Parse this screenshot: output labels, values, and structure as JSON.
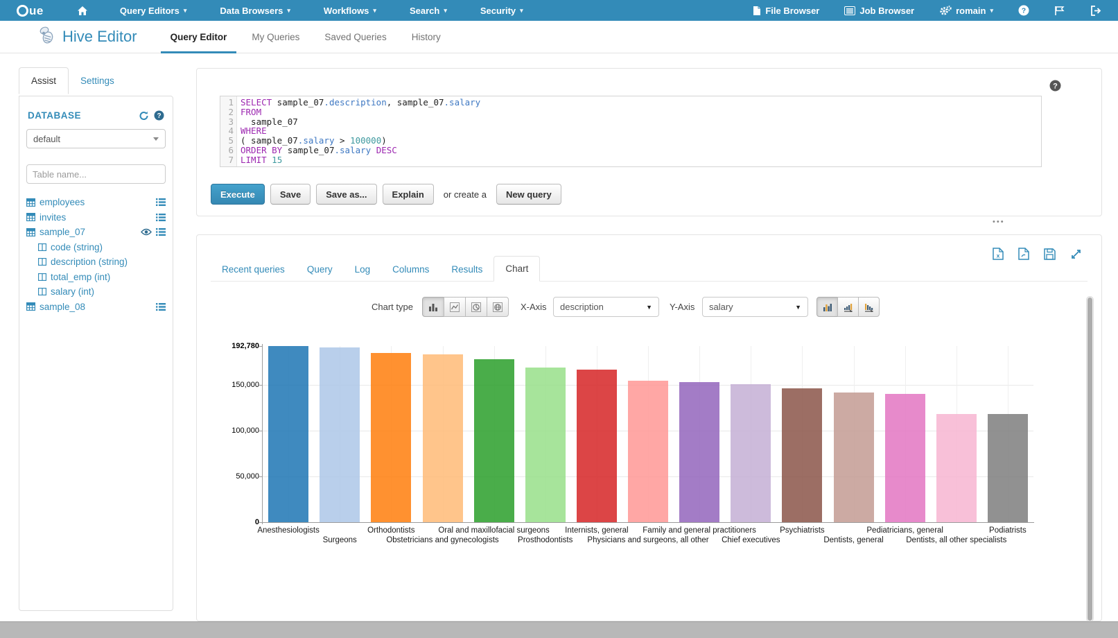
{
  "topnav": {
    "logo_text": "ue",
    "menus": [
      "Query Editors",
      "Data Browsers",
      "Workflows",
      "Search",
      "Security"
    ],
    "file_browser": "File Browser",
    "job_browser": "Job Browser",
    "user": "romain"
  },
  "subheader": {
    "app_title": "Hive Editor",
    "tabs": [
      "Query Editor",
      "My Queries",
      "Saved Queries",
      "History"
    ],
    "active_tab": "Query Editor"
  },
  "assist": {
    "tab_assist": "Assist",
    "tab_settings": "Settings",
    "database_label": "DATABASE",
    "database_value": "default",
    "table_filter_placeholder": "Table name...",
    "tables": [
      {
        "name": "employees",
        "viewed": false,
        "columns": []
      },
      {
        "name": "invites",
        "viewed": false,
        "columns": []
      },
      {
        "name": "sample_07",
        "viewed": true,
        "columns": [
          "code (string)",
          "description (string)",
          "total_emp (int)",
          "salary (int)"
        ]
      },
      {
        "name": "sample_08",
        "viewed": false,
        "columns": []
      }
    ]
  },
  "editor": {
    "lines": [
      {
        "num": "1",
        "tokens": [
          [
            "kw",
            "SELECT"
          ],
          [
            "pln",
            " sample_07"
          ],
          [
            "fld",
            ".description"
          ],
          [
            "pln",
            ", sample_07"
          ],
          [
            "fld",
            ".salary"
          ]
        ]
      },
      {
        "num": "2",
        "tokens": [
          [
            "kw",
            "FROM"
          ]
        ]
      },
      {
        "num": "3",
        "tokens": [
          [
            "pln",
            "  sample_07"
          ]
        ]
      },
      {
        "num": "4",
        "tokens": [
          [
            "kw",
            "WHERE"
          ]
        ]
      },
      {
        "num": "5",
        "tokens": [
          [
            "pln",
            "( sample_07"
          ],
          [
            "fld",
            ".salary"
          ],
          [
            "pln",
            " > "
          ],
          [
            "num",
            "100000"
          ],
          [
            "pln",
            ")"
          ]
        ]
      },
      {
        "num": "6",
        "tokens": [
          [
            "kw",
            "ORDER BY"
          ],
          [
            "pln",
            " sample_07"
          ],
          [
            "fld",
            ".salary"
          ],
          [
            "pln",
            " "
          ],
          [
            "kw",
            "DESC"
          ]
        ]
      },
      {
        "num": "7",
        "tokens": [
          [
            "kw",
            "LIMIT"
          ],
          [
            "num",
            " 15"
          ]
        ]
      }
    ]
  },
  "actions": {
    "execute": "Execute",
    "save": "Save",
    "save_as": "Save as...",
    "explain": "Explain",
    "or_create": "or create a",
    "new_query": "New query"
  },
  "results": {
    "tabs": [
      "Recent queries",
      "Query",
      "Log",
      "Columns",
      "Results",
      "Chart"
    ],
    "active_tab": "Chart"
  },
  "chart_controls": {
    "chart_type_label": "Chart type",
    "x_axis_label": "X-Axis",
    "x_axis_value": "description",
    "y_axis_label": "Y-Axis",
    "y_axis_value": "salary"
  },
  "chart_data": {
    "type": "bar",
    "title": "",
    "xlabel": "description",
    "ylabel": "salary",
    "ylim": [
      0,
      192780
    ],
    "grid": true,
    "legend": false,
    "yticks": [
      {
        "value": 192780,
        "label": "192,780",
        "bold": true
      },
      {
        "value": 150000,
        "label": "150,000",
        "bold": false
      },
      {
        "value": 100000,
        "label": "100,000",
        "bold": false
      },
      {
        "value": 50000,
        "label": "50,000",
        "bold": false
      },
      {
        "value": 0,
        "label": "0",
        "bold": true
      }
    ],
    "categories": [
      "Anesthesiologists",
      "Surgeons",
      "Orthodontists",
      "Obstetricians and gynecologists",
      "Oral and maxillofacial surgeons",
      "Prosthodontists",
      "Internists, general",
      "Physicians and surgeons, all other",
      "Family and general practitioners",
      "Chief executives",
      "Psychiatrists",
      "Dentists, general",
      "Pediatricians, general",
      "Dentists, all other specialists",
      "Podiatrists"
    ],
    "values": [
      192780,
      191410,
      185340,
      183600,
      178440,
      169360,
      167270,
      155150,
      153640,
      151370,
      146150,
      142070,
      140690,
      118500,
      118400
    ],
    "colors": [
      "#1f77b4",
      "#aec7e8",
      "#ff7f0e",
      "#ffbb78",
      "#2ca02c",
      "#98df8a",
      "#d62728",
      "#ff9896",
      "#9467bd",
      "#c5b0d5",
      "#8c564b",
      "#c49c94",
      "#e377c2",
      "#f7b6d2",
      "#7f7f7f"
    ],
    "bar_opacity": 0.86
  }
}
